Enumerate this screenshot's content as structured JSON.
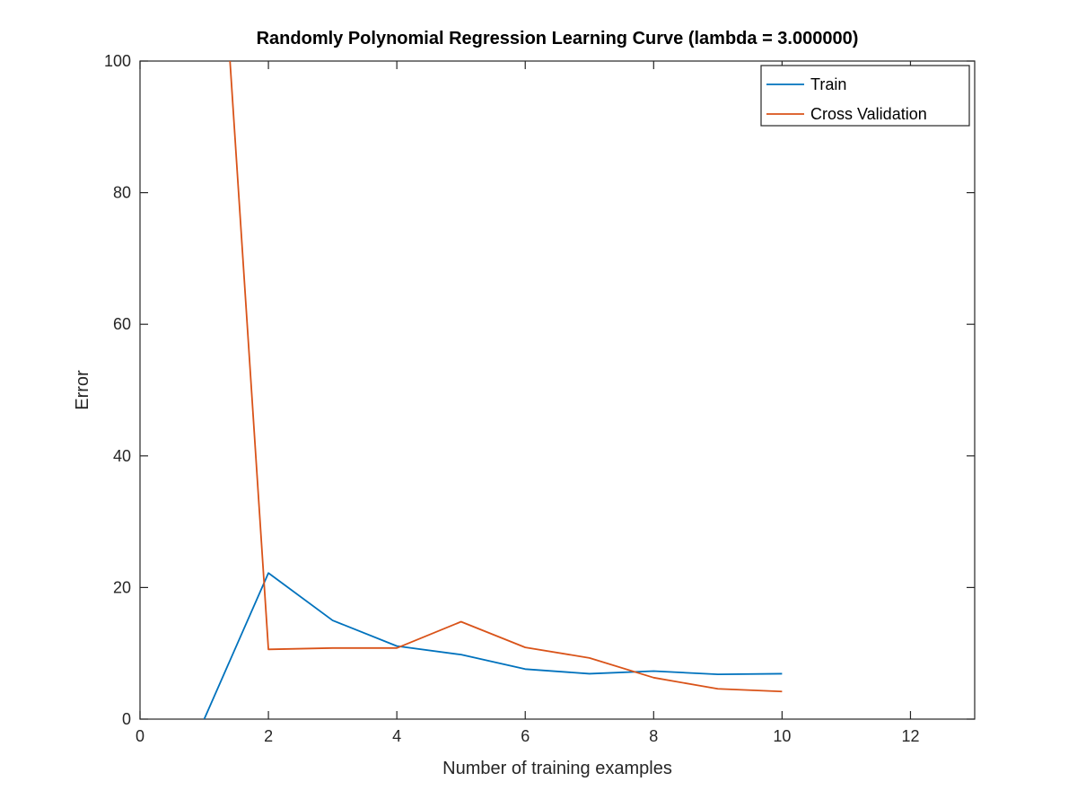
{
  "chart_data": {
    "type": "line",
    "title": "Randomly Polynomial Regression Learning Curve (lambda = 3.000000)",
    "xlabel": "Number of training examples",
    "ylabel": "Error",
    "xlim": [
      0,
      13
    ],
    "ylim": [
      0,
      100
    ],
    "xticks": [
      0,
      2,
      4,
      6,
      8,
      10,
      12
    ],
    "yticks": [
      0,
      20,
      40,
      60,
      80,
      100
    ],
    "grid": false,
    "legend_position": "top-right",
    "x": [
      1,
      2,
      3,
      4,
      5,
      6,
      7,
      8,
      9,
      10
    ],
    "series": [
      {
        "name": "Train",
        "color": "#0072BD",
        "values": [
          0,
          22.2,
          15.0,
          11.1,
          9.8,
          7.6,
          6.9,
          7.3,
          6.8,
          6.9
        ]
      },
      {
        "name": "Cross Validation",
        "color": "#D95319",
        "values": [
          160,
          10.6,
          10.8,
          10.8,
          14.8,
          10.9,
          9.3,
          6.3,
          4.6,
          4.2
        ]
      }
    ]
  }
}
